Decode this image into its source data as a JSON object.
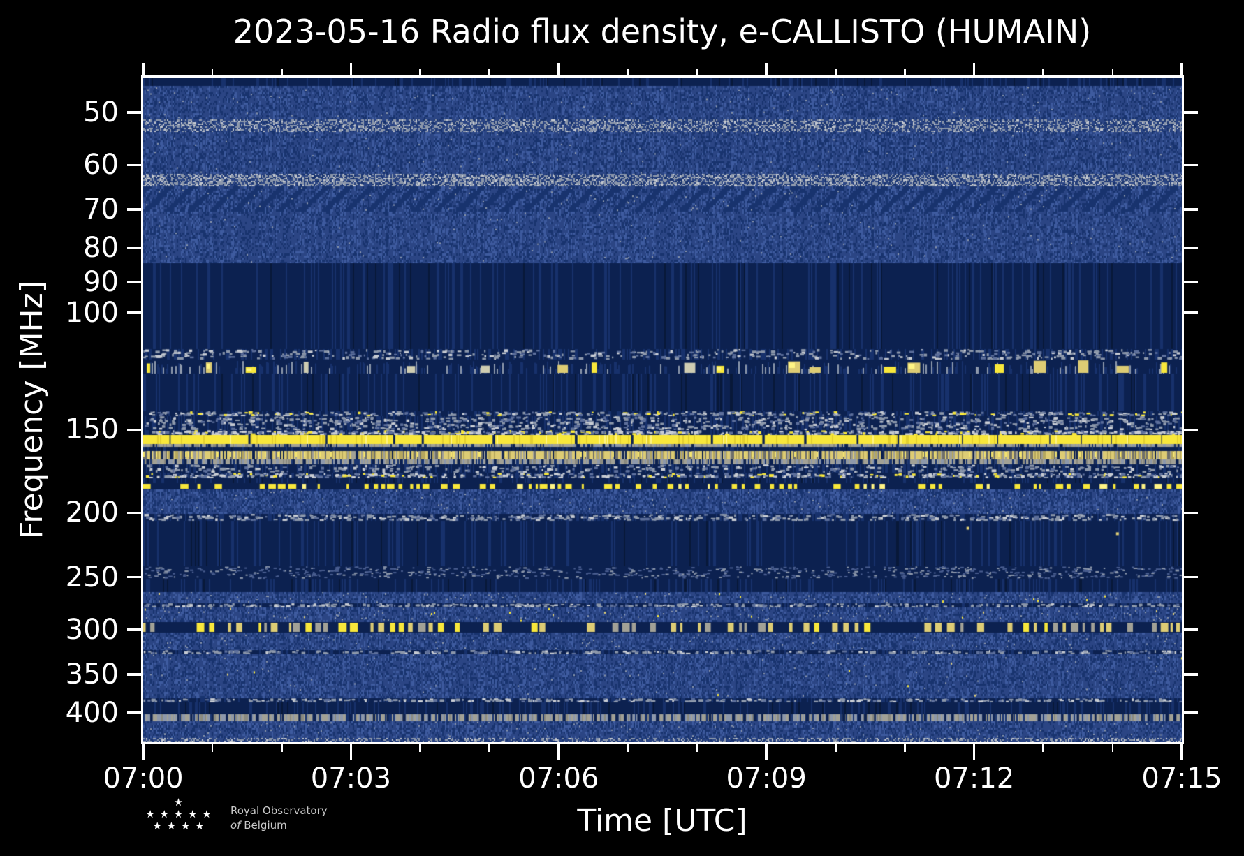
{
  "chart_data": {
    "type": "heatmap",
    "title": "2023-05-16 Radio flux density, e-CALLISTO (HUMAIN)",
    "xlabel": "Time [UTC]",
    "ylabel": "Frequency [MHz]",
    "x_start": "07:00",
    "x_end": "07:15",
    "x_tick_labels": [
      "07:00",
      "07:03",
      "07:06",
      "07:09",
      "07:12",
      "07:15"
    ],
    "x_minor_per_major": 3,
    "y_scale": "log",
    "y_tick_labels": [
      50,
      60,
      70,
      80,
      90,
      100,
      150,
      200,
      250,
      300,
      350,
      400
    ],
    "y_range_mhz": [
      44.3,
      442.6
    ],
    "grid": false,
    "legend": "none",
    "colors": {
      "background": "#000000",
      "axis": "#ffffff",
      "text": "#ffffff",
      "dark": "#0c2150",
      "darker": "#081838",
      "navy2": "#17316c",
      "mottleBase": "#2b4584",
      "mottleDark": "#18336e",
      "mottleLight": "#3e5b9f",
      "paleBlue": "#8d98ab",
      "paleLight": "#c8ccd3",
      "gray": "#a2a196",
      "paleYellow": "#ddcc74",
      "yellow": "#f8e73b",
      "yellowBright": "#fff485",
      "logoText": "#c9c9c9"
    },
    "bands": [
      {
        "f0": 44.3,
        "f1": 45.6,
        "style": "dark"
      },
      {
        "f0": 45.6,
        "f1": 51.2,
        "style": "mottle",
        "d": 0.9
      },
      {
        "f0": 51.2,
        "f1": 53.5,
        "style": "lightband",
        "l": 0.8
      },
      {
        "f0": 53.5,
        "f1": 61.8,
        "style": "mottle",
        "d": 1.0
      },
      {
        "f0": 61.8,
        "f1": 64.6,
        "style": "lightband",
        "l": 0.95
      },
      {
        "f0": 64.6,
        "f1": 70.4,
        "style": "mottle",
        "d": 1.1,
        "saw": true
      },
      {
        "f0": 70.4,
        "f1": 84.3,
        "style": "mottle",
        "d": 0.8
      },
      {
        "f0": 84.3,
        "f1": 113.4,
        "style": "dark"
      },
      {
        "f0": 113.4,
        "f1": 117.6,
        "style": "speckle",
        "density": 0.3
      },
      {
        "f0": 117.6,
        "f1": 123.4,
        "style": "blobs"
      },
      {
        "f0": 123.4,
        "f1": 140.6,
        "style": "dark"
      },
      {
        "f0": 140.6,
        "f1": 143.0,
        "style": "speckle",
        "density": 0.55,
        "yellow": true
      },
      {
        "f0": 143.0,
        "f1": 150.3,
        "style": "speckle",
        "density": 0.4
      },
      {
        "f0": 150.3,
        "f1": 152.8,
        "style": "speckle",
        "density": 0.75,
        "bright": true,
        "yellow": true
      },
      {
        "f0": 152.8,
        "f1": 157.8,
        "style": "solidline"
      },
      {
        "f0": 157.8,
        "f1": 159.2,
        "style": "grayline",
        "l": 1.0,
        "breaks": 0.1
      },
      {
        "f0": 159.2,
        "f1": 161.5,
        "style": "dark",
        "streaks": true
      },
      {
        "f0": 161.5,
        "f1": 166.4,
        "style": "paleyellow"
      },
      {
        "f0": 166.4,
        "f1": 168.9,
        "style": "grayline",
        "l": 0.85,
        "breaks": 0.18
      },
      {
        "f0": 168.9,
        "f1": 173.9,
        "style": "speckle",
        "density": 0.3
      },
      {
        "f0": 173.9,
        "f1": 177.5,
        "style": "speckle",
        "density": 0.6,
        "bright": true,
        "yellow": true
      },
      {
        "f0": 177.5,
        "f1": 180.5,
        "style": "dark",
        "streaks": true
      },
      {
        "f0": 180.5,
        "f1": 184.5,
        "style": "dotted",
        "color": "yellow"
      },
      {
        "f0": 184.5,
        "f1": 200.8,
        "style": "mottle",
        "d": 1.0
      },
      {
        "f0": 200.8,
        "f1": 205.7,
        "style": "speckle",
        "density": 0.5
      },
      {
        "f0": 205.7,
        "f1": 240.6,
        "style": "dark"
      },
      {
        "f0": 240.6,
        "f1": 251.3,
        "style": "sparse",
        "density": 0.5
      },
      {
        "f0": 251.3,
        "f1": 263.0,
        "style": "dark"
      },
      {
        "f0": 263.0,
        "f1": 273.3,
        "style": "mottle",
        "d": 0.9,
        "specks": 0.02
      },
      {
        "f0": 273.3,
        "f1": 277.3,
        "style": "speckle",
        "density": 0.55
      },
      {
        "f0": 277.3,
        "f1": 291.8,
        "style": "mottle",
        "d": 0.9,
        "specks": 0.02
      },
      {
        "f0": 291.8,
        "f1": 302.5,
        "style": "dotted",
        "color": "pale"
      },
      {
        "f0": 302.5,
        "f1": 321.3,
        "style": "mottle",
        "d": 1.0
      },
      {
        "f0": 321.3,
        "f1": 326.0,
        "style": "speckle",
        "density": 0.45
      },
      {
        "f0": 326.0,
        "f1": 380.3,
        "style": "mottle",
        "d": 0.95,
        "specks": 0.015
      },
      {
        "f0": 380.3,
        "f1": 385.9,
        "style": "speckle",
        "density": 0.5
      },
      {
        "f0": 385.9,
        "f1": 402.0,
        "style": "dark"
      },
      {
        "f0": 402.0,
        "f1": 411.9,
        "style": "grayline",
        "l": 0.75,
        "breaks": 0.22
      },
      {
        "f0": 411.9,
        "f1": 436.3,
        "style": "mottle",
        "d": 1.0
      },
      {
        "f0": 436.3,
        "f1": 442.6,
        "style": "lightband",
        "l": 0.7
      }
    ],
    "features": [
      {
        "t": 0.794,
        "f": 211
      },
      {
        "t": 0.938,
        "f": 215
      }
    ]
  },
  "logo": {
    "stars": [
      "★",
      "★ ★ ★ ★ ★",
      "★ ★ ★ ★"
    ],
    "line1": "Royal Observatory",
    "line2_italic": "of",
    "line2": "Belgium"
  }
}
